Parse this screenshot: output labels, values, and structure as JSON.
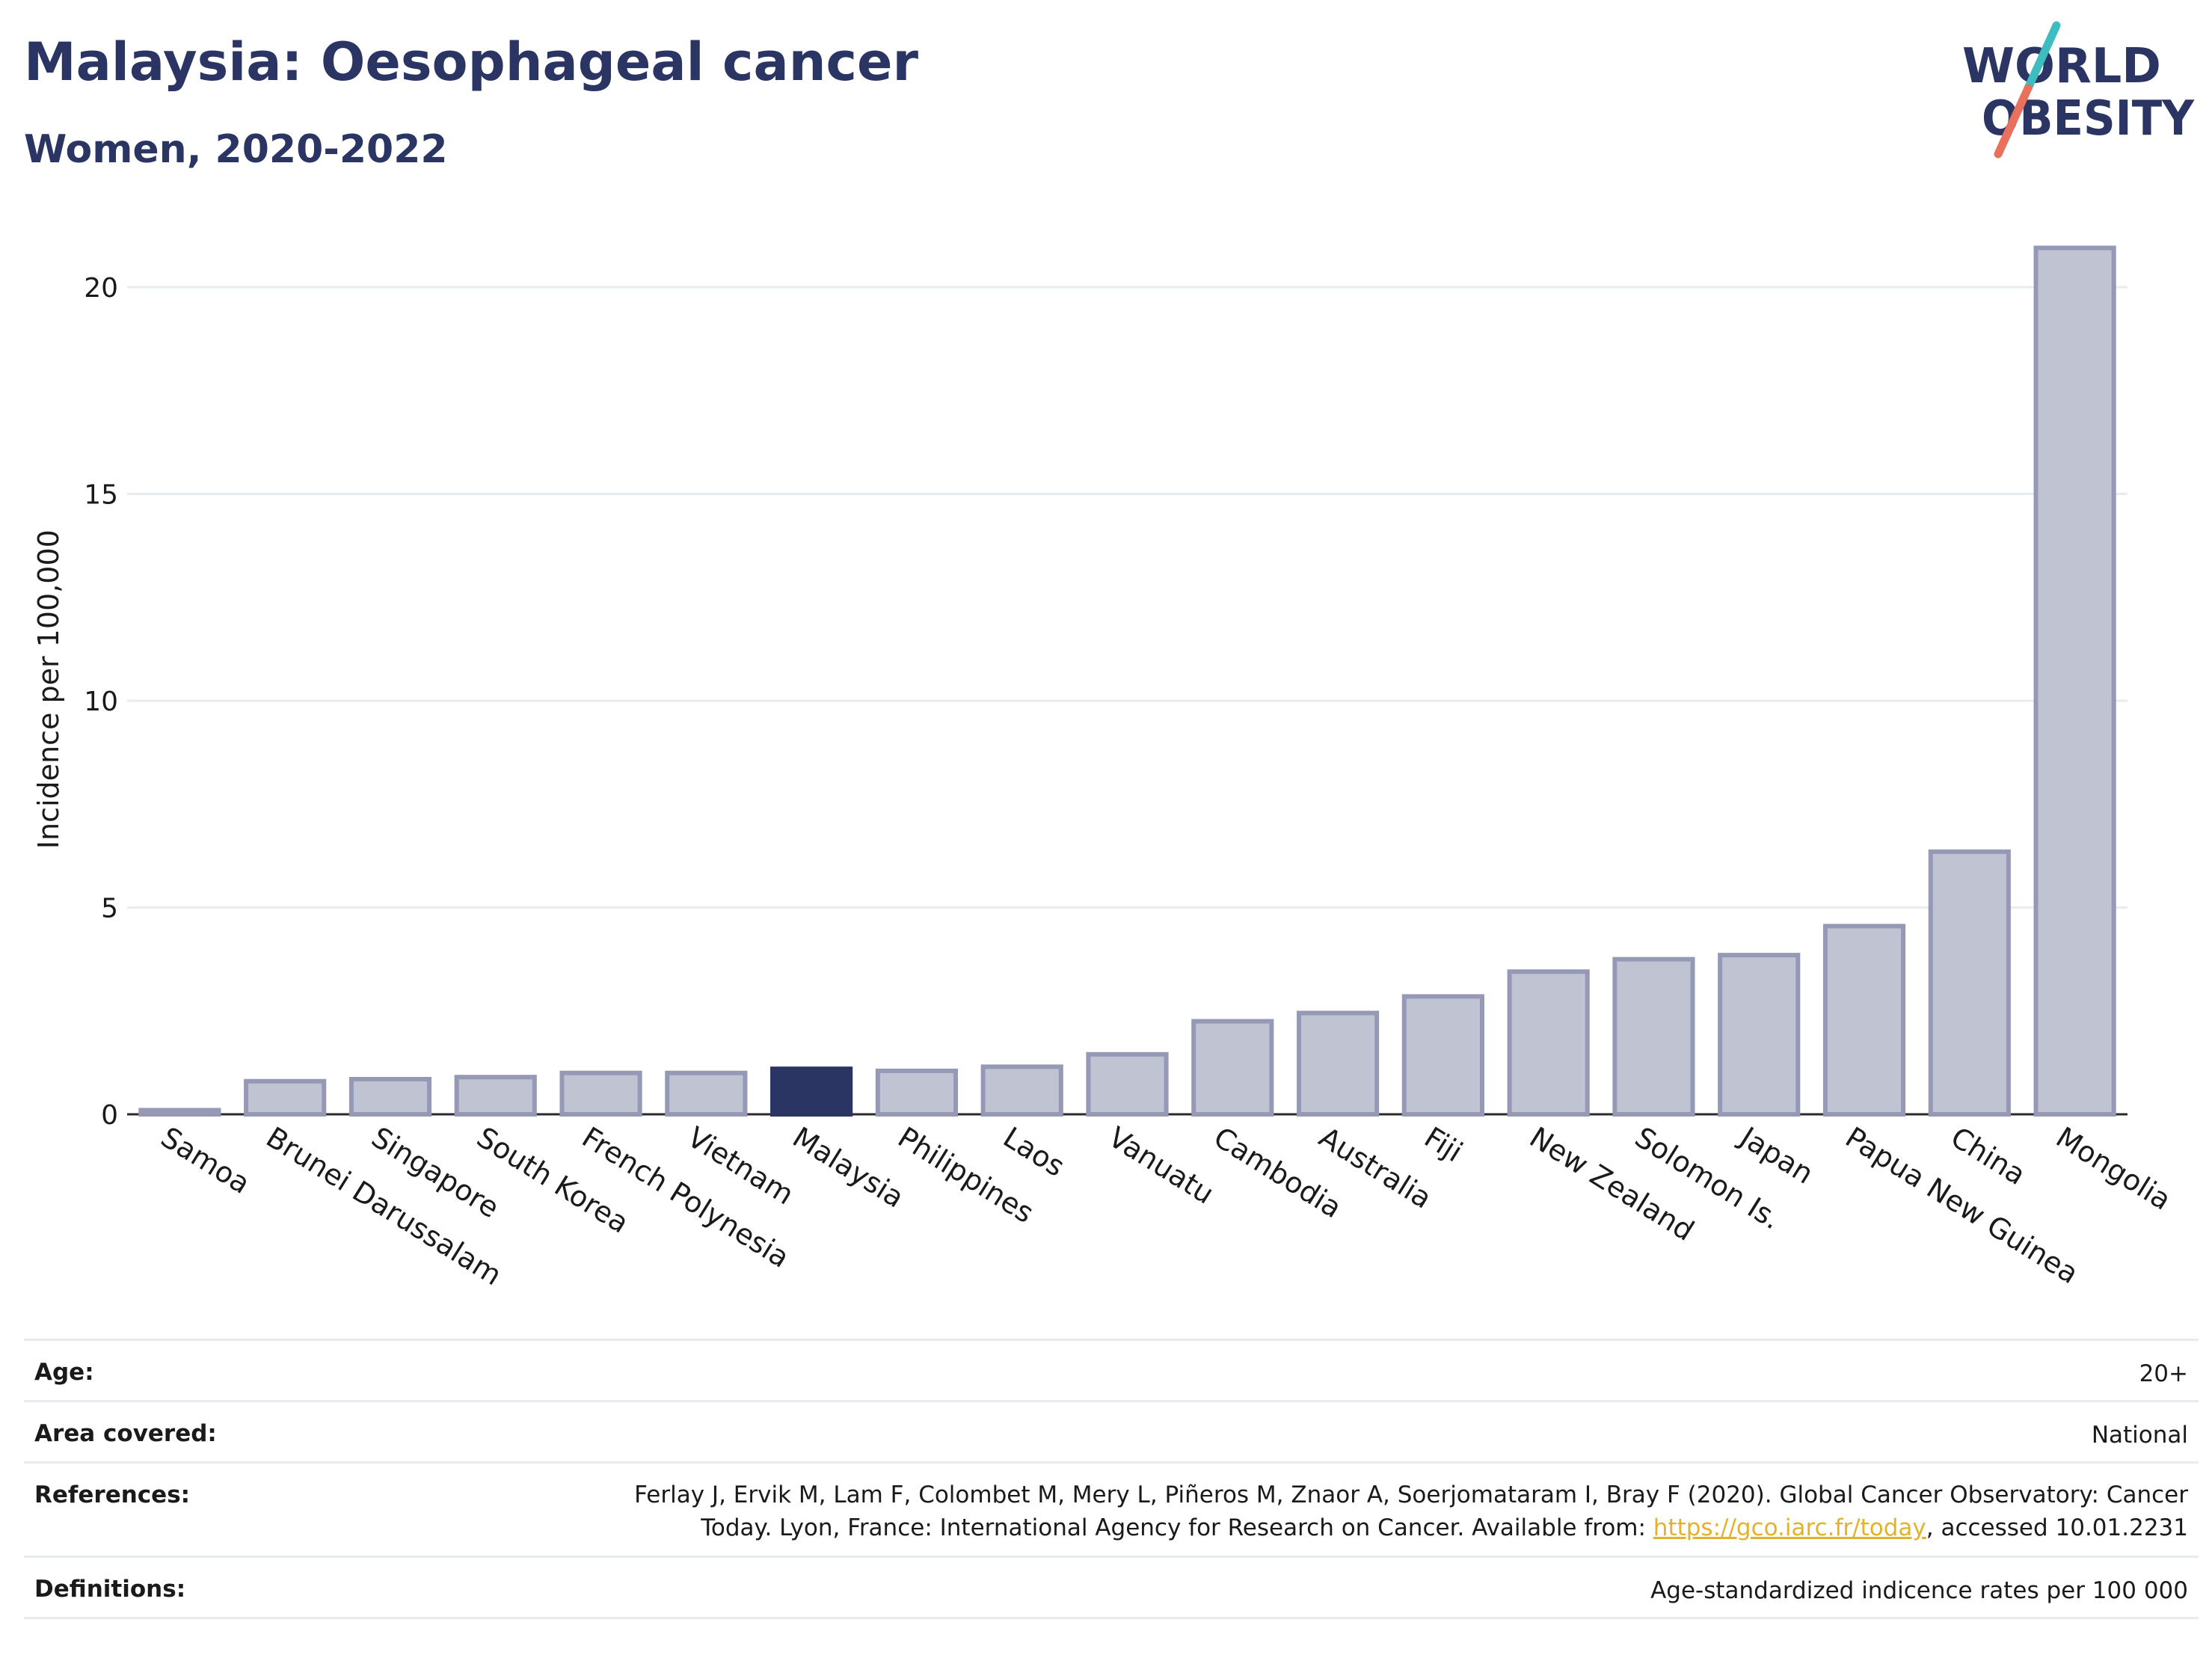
{
  "header": {
    "title": "Malaysia: Oesophageal cancer",
    "subtitle": "Women, 2020-2022"
  },
  "logo": {
    "line1": "WORLD",
    "line2": "OBESITY",
    "colors": {
      "text": "#2b3563",
      "slash_top": "#3dbdc0",
      "slash_bottom": "#e8705c"
    }
  },
  "colors": {
    "bar_fill": "#c0c3d1",
    "bar_stroke": "#9599b5",
    "highlight_fill": "#2b3563",
    "grid": "#e6ecef",
    "axis": "#2a2a2a",
    "title": "#2b3563",
    "link": "#e3b22b"
  },
  "chart_data": {
    "type": "bar",
    "categories": [
      "Samoa",
      "Brunei Darussalam",
      "Singapore",
      "South Korea",
      "French Polynesia",
      "Vietnam",
      "Malaysia",
      "Philippines",
      "Laos",
      "Vanuatu",
      "Cambodia",
      "Australia",
      "Fiji",
      "New Zealand",
      "Solomon Is.",
      "Japan",
      "Papua New Guinea",
      "China",
      "Mongolia"
    ],
    "values": [
      0.1,
      0.8,
      0.85,
      0.9,
      1.0,
      1.0,
      1.1,
      1.05,
      1.15,
      1.45,
      2.25,
      2.45,
      2.85,
      3.45,
      3.75,
      3.85,
      4.55,
      6.35,
      20.95
    ],
    "highlight": "Malaysia",
    "title": "Malaysia: Oesophageal cancer",
    "subtitle": "Women, 2020-2022",
    "xlabel": "",
    "ylabel": "Incidence per 100,000",
    "ylim": [
      0,
      22
    ],
    "yticks": [
      0,
      5,
      10,
      15,
      20
    ],
    "grid": true,
    "legend": "none"
  },
  "footer": {
    "rows": [
      {
        "label": "Age:",
        "value": "20+"
      },
      {
        "label": "Area covered:",
        "value": "National"
      },
      {
        "label": "References:",
        "value_line1": "Ferlay J, Ervik M, Lam F, Colombet M, Mery L, Piñeros M, Znaor A, Soerjomataram I, Bray F (2020). Global Cancer Observatory: Cancer",
        "value_line2_pre": "Today. Lyon, France: International Agency for Research on Cancer. Available from: ",
        "link": "https://gco.iarc.fr/today",
        "value_line2_post": ", accessed 10.01.2231"
      },
      {
        "label": "Definitions:",
        "value": "Age-standardized indicence rates per 100 000"
      }
    ]
  }
}
